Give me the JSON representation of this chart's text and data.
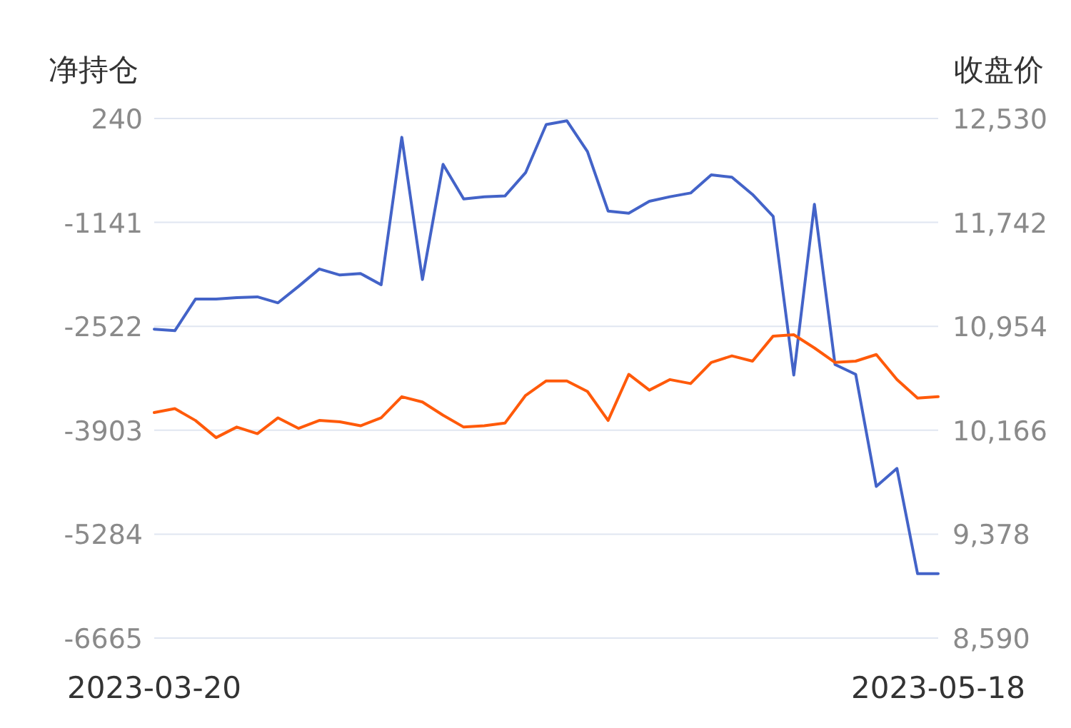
{
  "chart_data": {
    "type": "line",
    "ylabel": "净持仓",
    "y2label": "收盘价",
    "categories": [
      "2023-03-20",
      null,
      null,
      null,
      null,
      null,
      null,
      null,
      null,
      null,
      null,
      null,
      null,
      null,
      null,
      null,
      null,
      null,
      null,
      null,
      null,
      null,
      null,
      null,
      null,
      null,
      null,
      null,
      null,
      null,
      null,
      null,
      null,
      null,
      null,
      null,
      null,
      null,
      "2023-05-18"
    ],
    "ylim": [
      -6665,
      240
    ],
    "yticks": [
      240,
      -1141,
      -2522,
      -3903,
      -5284,
      -6665
    ],
    "y2lim": [
      8590,
      12530
    ],
    "y2ticks": [
      {
        "value": 12530,
        "label": "12,530"
      },
      {
        "value": 11742,
        "label": "11,742"
      },
      {
        "value": 10954,
        "label": "10,954"
      },
      {
        "value": 10166,
        "label": "10,166"
      },
      {
        "value": 9378,
        "label": "9,378"
      },
      {
        "value": 8590,
        "label": "8,590"
      }
    ],
    "grid": "y",
    "marker": "none",
    "line_style": "solid",
    "series": [
      {
        "color": "#4363c8",
        "values": [
          -2560,
          -2580,
          -2160,
          -2160,
          -2140,
          -2130,
          -2210,
          -1990,
          -1760,
          -1840,
          -1820,
          -1970,
          -10,
          -1900,
          -370,
          -830,
          -800,
          -790,
          -480,
          160,
          210,
          -200,
          -990,
          -1020,
          -860,
          -800,
          -750,
          -510,
          -540,
          -770,
          -1060,
          -3170,
          -900,
          -3030,
          -3160,
          -4650,
          -4410,
          -5810,
          -5810
        ]
      },
      {
        "color": "#ff5a0a",
        "axis": "y2",
        "values": [
          10300,
          10330,
          10240,
          10110,
          10190,
          10140,
          10260,
          10180,
          10240,
          10230,
          10200,
          10260,
          10420,
          10380,
          10280,
          10190,
          10200,
          10220,
          10430,
          10540,
          10540,
          10460,
          10240,
          10590,
          10470,
          10550,
          10520,
          10680,
          10730,
          10690,
          10880,
          10890,
          10790,
          10680,
          10690,
          10740,
          10550,
          10410,
          10420
        ]
      }
    ]
  }
}
